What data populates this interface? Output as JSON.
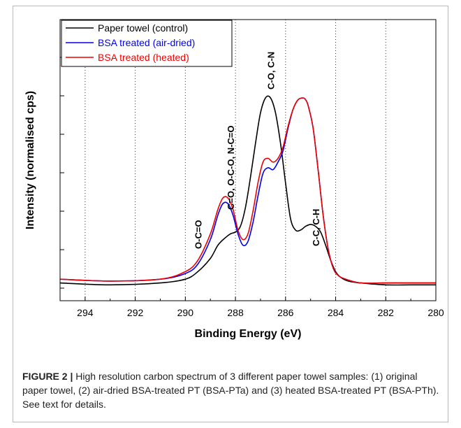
{
  "chart_data": {
    "type": "line",
    "xlabel": "Binding Energy (eV)",
    "ylabel": "Intensity (normalised cps)",
    "xlim": [
      295,
      280
    ],
    "x_reversed": true,
    "xticks": [
      294,
      292,
      290,
      288,
      286,
      284,
      282,
      280
    ],
    "grid": "vertical dotted",
    "legend_position": "top-left",
    "series": [
      {
        "name": "Paper towel (control)",
        "color": "#000000",
        "x": [
          295,
          293,
          291,
          290,
          289.5,
          289,
          288.7,
          288.4,
          288.2,
          288.0,
          287.8,
          287.6,
          287.4,
          287.2,
          287.0,
          286.8,
          286.6,
          286.4,
          286.2,
          286.0,
          285.8,
          285.6,
          285.4,
          285.2,
          285.0,
          284.8,
          284.6,
          284.4,
          284.2,
          284.0,
          283.8,
          283.5,
          283.0,
          282,
          281,
          280
        ],
        "y": [
          0.02,
          0.01,
          0.02,
          0.04,
          0.08,
          0.15,
          0.22,
          0.26,
          0.28,
          0.29,
          0.32,
          0.42,
          0.58,
          0.76,
          0.92,
          1.0,
          1.0,
          0.92,
          0.76,
          0.55,
          0.36,
          0.3,
          0.3,
          0.32,
          0.33,
          0.32,
          0.29,
          0.22,
          0.14,
          0.08,
          0.05,
          0.03,
          0.02,
          0.01,
          0.01,
          0.01
        ]
      },
      {
        "name": "BSA treated (air-dried)",
        "color": "#0000ee",
        "x": [
          295,
          293,
          291,
          290,
          289.5,
          289,
          288.7,
          288.5,
          288.3,
          288.1,
          287.9,
          287.7,
          287.5,
          287.3,
          287.1,
          286.9,
          286.7,
          286.5,
          286.3,
          286.1,
          285.9,
          285.7,
          285.5,
          285.3,
          285.2,
          285.1,
          284.9,
          284.7,
          284.5,
          284.3,
          284.1,
          283.9,
          283.6,
          283.0,
          282,
          281,
          280
        ],
        "y": [
          0.04,
          0.03,
          0.04,
          0.07,
          0.12,
          0.25,
          0.38,
          0.44,
          0.44,
          0.38,
          0.28,
          0.22,
          0.24,
          0.34,
          0.48,
          0.6,
          0.63,
          0.62,
          0.66,
          0.72,
          0.84,
          0.94,
          0.99,
          1.0,
          0.99,
          0.96,
          0.84,
          0.62,
          0.38,
          0.2,
          0.1,
          0.06,
          0.04,
          0.02,
          0.02,
          0.02,
          0.02
        ]
      },
      {
        "name": "BSA treated (heated)",
        "color": "#ee0000",
        "x": [
          295,
          293,
          291,
          290,
          289.5,
          289,
          288.7,
          288.5,
          288.3,
          288.1,
          287.9,
          287.7,
          287.5,
          287.3,
          287.1,
          286.9,
          286.7,
          286.5,
          286.3,
          286.1,
          285.9,
          285.7,
          285.5,
          285.3,
          285.2,
          285.1,
          284.9,
          284.7,
          284.5,
          284.3,
          284.1,
          283.9,
          283.6,
          283.0,
          282,
          281,
          280
        ],
        "y": [
          0.04,
          0.03,
          0.04,
          0.08,
          0.14,
          0.28,
          0.41,
          0.47,
          0.47,
          0.41,
          0.3,
          0.25,
          0.28,
          0.4,
          0.55,
          0.66,
          0.68,
          0.66,
          0.68,
          0.74,
          0.85,
          0.94,
          0.99,
          1.0,
          0.99,
          0.96,
          0.84,
          0.62,
          0.38,
          0.2,
          0.1,
          0.06,
          0.04,
          0.02,
          0.02,
          0.02,
          0.02
        ]
      }
    ],
    "annotations": [
      {
        "text": "O-C=O",
        "x": 289.5
      },
      {
        "text": "C=O, O-C-O, N-C=O",
        "x": 288.2
      },
      {
        "text": "C-O, C-N",
        "x": 286.6
      },
      {
        "text": "C-C, C-H",
        "x": 284.8
      }
    ],
    "vlines": [
      294,
      292,
      290,
      288,
      286,
      284,
      282
    ]
  },
  "caption": {
    "label": "FIGURE 2 |",
    "text": " High resolution carbon spectrum of 3 different paper towel samples: (1) original paper towel, (2) air-dried BSA-treated PT (BSA-PTa) and (3) heated BSA-treated PT (BSA-PTh). See text for details."
  }
}
